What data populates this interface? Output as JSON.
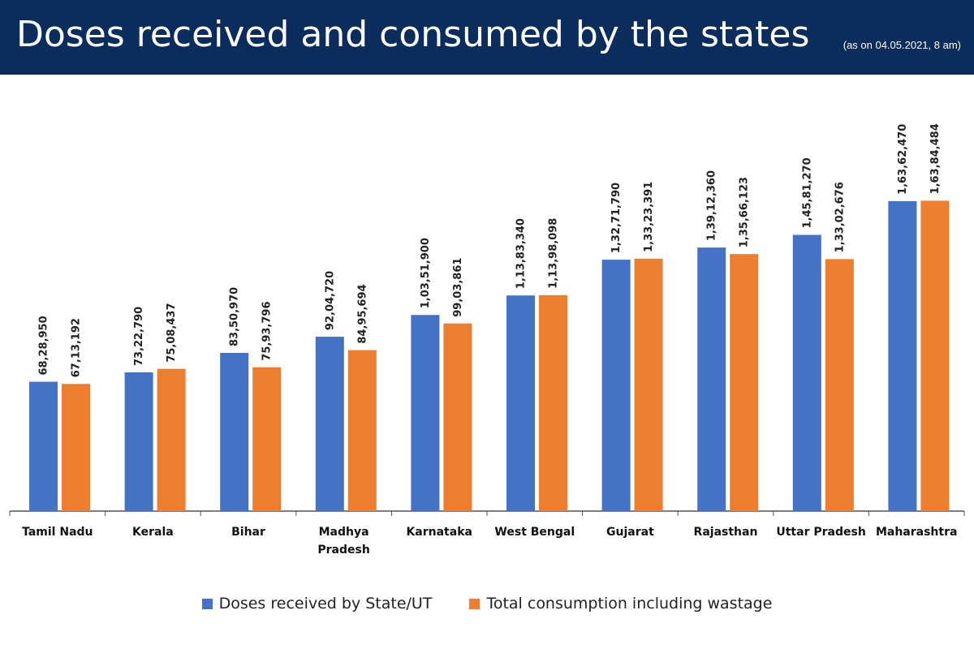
{
  "header": {
    "title": "Doses received and consumed by the states",
    "note": "(as on 04.05.2021, 8 am)",
    "background": "#0b2d5c"
  },
  "chart_data": {
    "type": "bar",
    "title": "Doses received and consumed by the states",
    "categories": [
      [
        "Tamil Nadu"
      ],
      [
        "Kerala"
      ],
      [
        "Bihar"
      ],
      [
        "Madhya",
        "Pradesh"
      ],
      [
        "Karnataka"
      ],
      [
        "West Bengal"
      ],
      [
        "Gujarat"
      ],
      [
        "Rajasthan"
      ],
      [
        "Uttar Pradesh"
      ],
      [
        "Maharashtra"
      ]
    ],
    "series": [
      {
        "name": "Doses received by State/UT",
        "color": "#4472c4",
        "values": [
          6828950,
          7322790,
          8350970,
          9204720,
          10351900,
          11383340,
          13271790,
          13912360,
          14581270,
          16362470
        ],
        "labels": [
          "68,28,950",
          "73,22,790",
          "83,50,970",
          "92,04,720",
          "1,03,51,900",
          "1,13,83,340",
          "1,32,71,790",
          "1,39,12,360",
          "1,45,81,270",
          "1,63,62,470"
        ]
      },
      {
        "name": "Total consumption including wastage",
        "color": "#ed7d31",
        "values": [
          6713192,
          7508437,
          7593796,
          8495694,
          9903861,
          11398098,
          13323391,
          13566123,
          13302676,
          16384484
        ],
        "labels": [
          "67,13,192",
          "75,08,437",
          "75,93,796",
          "84,95,694",
          "99,03,861",
          "1,13,98,098",
          "1,33,23,391",
          "1,35,66,123",
          "1,33,02,676",
          "1,63,84,484"
        ]
      }
    ],
    "ylim": [
      0,
      16500000
    ],
    "grid": false,
    "legend_position": "bottom"
  }
}
